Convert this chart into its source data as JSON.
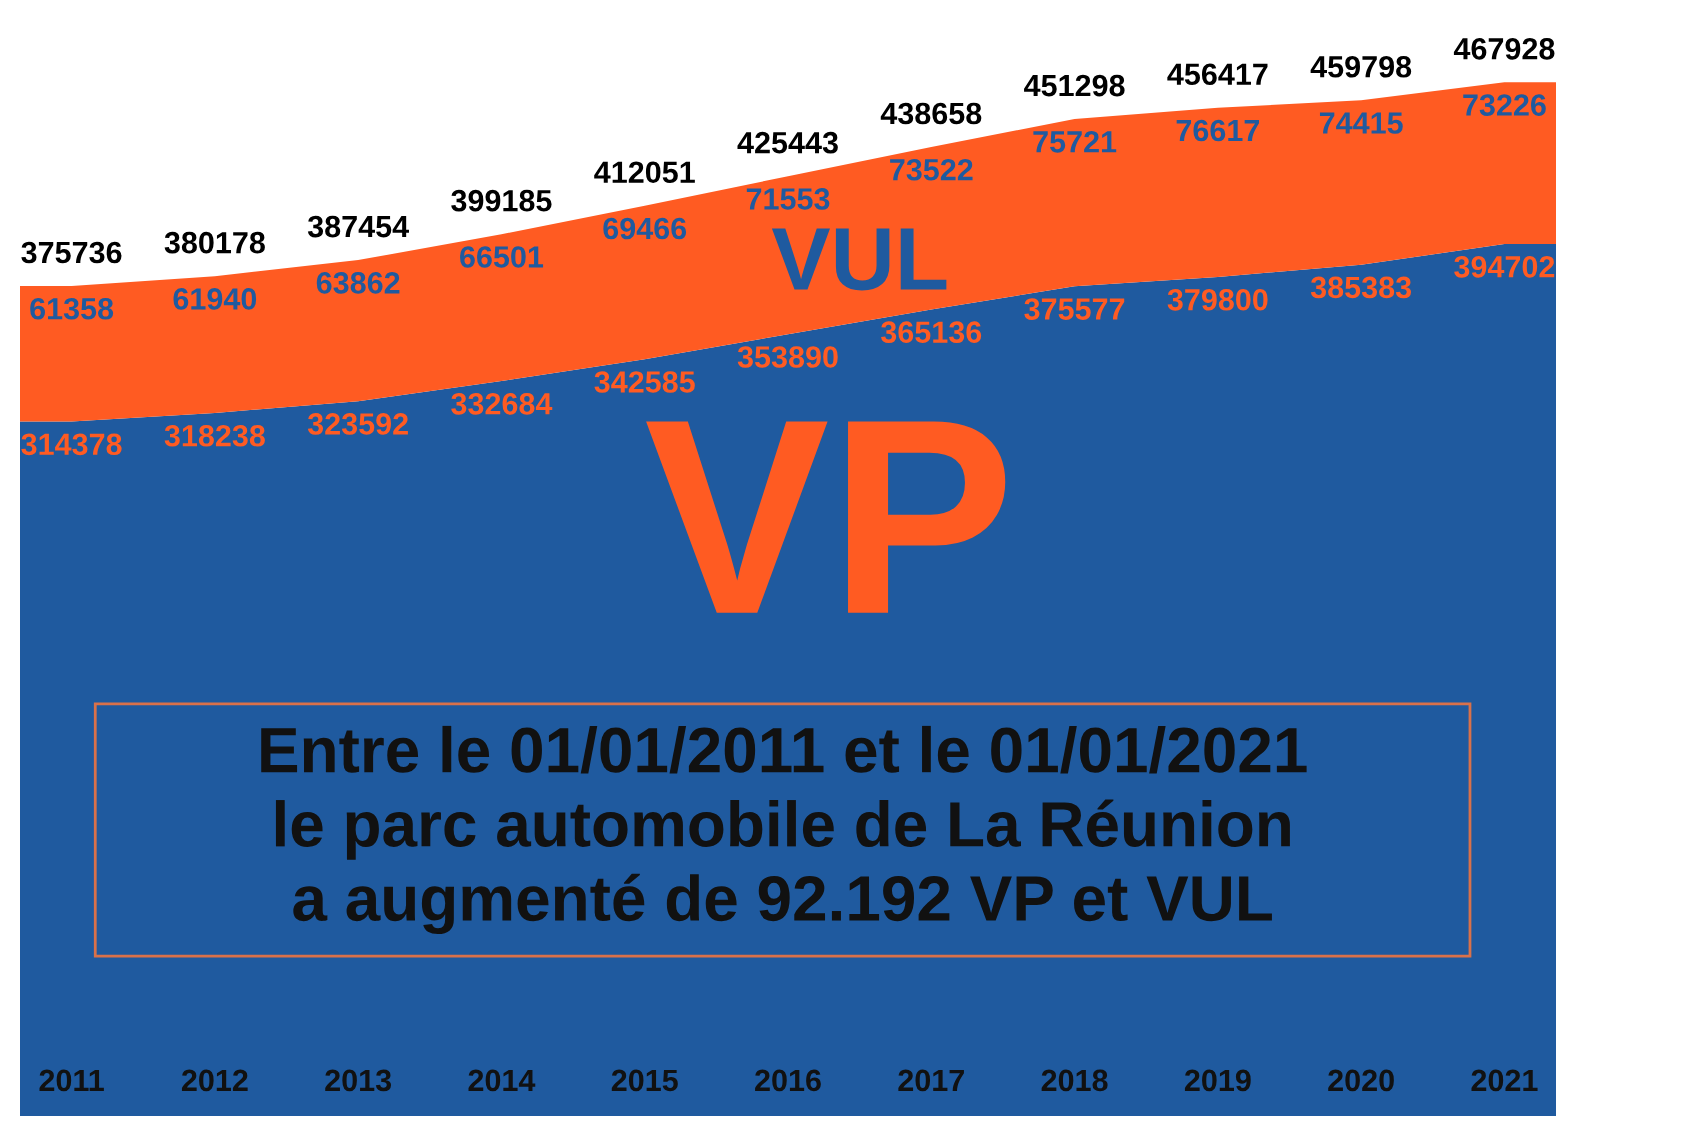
{
  "chart_data": {
    "type": "area",
    "stacked": true,
    "data_labels": true,
    "tick_labels": "x",
    "categories": [
      "2011",
      "2012",
      "2013",
      "2014",
      "2015",
      "2016",
      "2017",
      "2018",
      "2019",
      "2020",
      "2021"
    ],
    "series": [
      {
        "name": "VP",
        "color": "#1f5a9f",
        "values": [
          314378,
          318238,
          323592,
          332684,
          342585,
          353890,
          365136,
          375577,
          379800,
          385383,
          394702
        ]
      },
      {
        "name": "VUL",
        "color": "#ff5b22",
        "values": [
          61358,
          61940,
          63862,
          66501,
          69466,
          71553,
          73522,
          75721,
          76617,
          74415,
          73226
        ]
      }
    ],
    "totals": [
      "375736",
      "380178",
      "387454",
      "399185",
      "412051",
      "425443",
      "438658",
      "451298",
      "456417",
      "459798",
      "467928"
    ],
    "annotations": [
      "Entre le 01/01/2011 et le 01/01/2021\nle parc automobile de La Réunion\na augmenté de 92.192 VP et VUL"
    ]
  }
}
